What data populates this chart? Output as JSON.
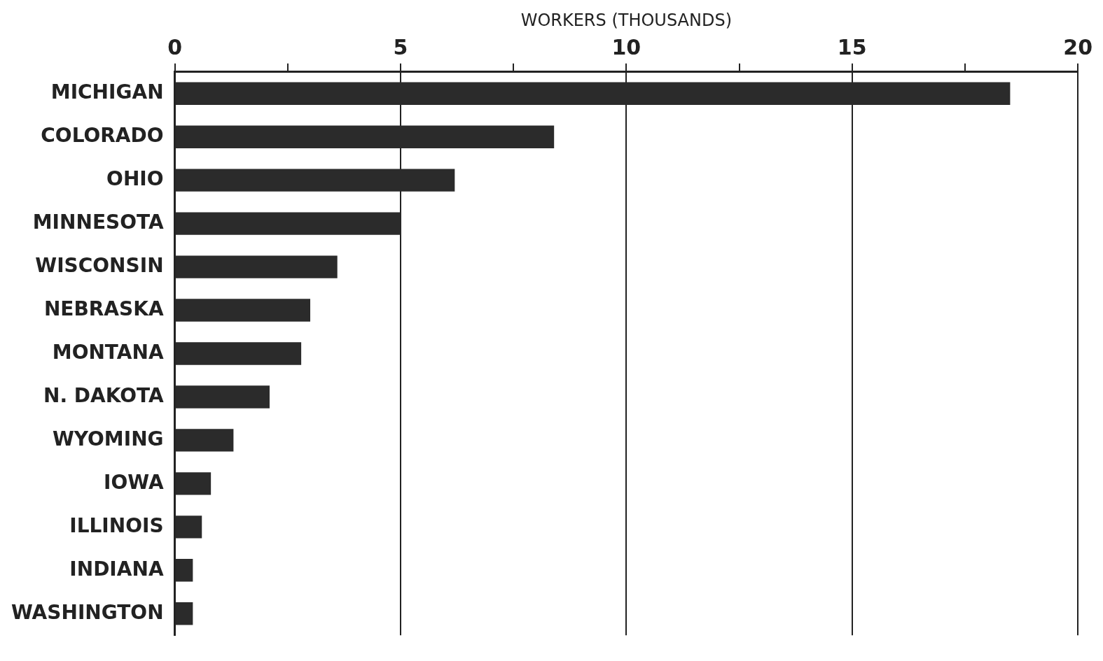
{
  "chart_data": {
    "type": "bar",
    "orientation": "horizontal",
    "xlabel": "WORKERS (THOUSANDS)",
    "categories": [
      "MICHIGAN",
      "COLORADO",
      "OHIO",
      "MINNESOTA",
      "WISCONSIN",
      "NEBRASKA",
      "MONTANA",
      "N. DAKOTA",
      "WYOMING",
      "IOWA",
      "ILLINOIS",
      "INDIANA",
      "WASHINGTON"
    ],
    "values": [
      18.5,
      8.4,
      6.2,
      5.0,
      3.6,
      3.0,
      2.8,
      2.1,
      1.3,
      0.8,
      0.6,
      0.4,
      0.4
    ],
    "color": "#2b2b2b",
    "xlim": [
      0,
      20
    ],
    "xticks": [
      0,
      {
        "value": 2.5,
        "label": null
      },
      5,
      {
        "value": 7.5,
        "label": null
      },
      10,
      {
        "value": 12.5,
        "label": null
      },
      15,
      {
        "value": 17.5,
        "label": null
      },
      20
    ],
    "grid": "x",
    "legend": false
  }
}
